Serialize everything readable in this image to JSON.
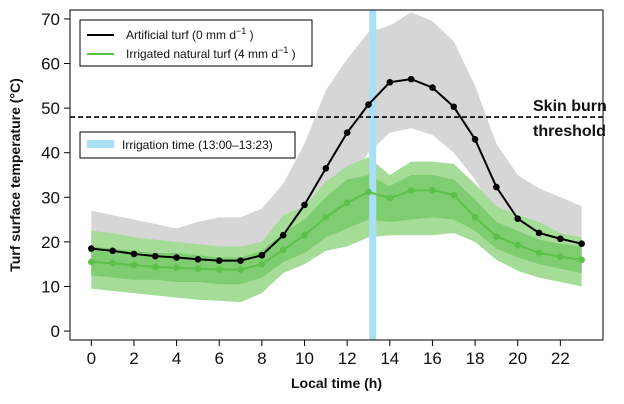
{
  "chart_data": {
    "type": "line",
    "xlabel": "Local time (h)",
    "ylabel": "Turf surface temperature (°C)",
    "xlim": [
      -1,
      24
    ],
    "ylim": [
      -2,
      72
    ],
    "xticks": [
      0,
      2,
      4,
      6,
      8,
      10,
      12,
      14,
      16,
      18,
      20,
      22
    ],
    "yticks": [
      0,
      10,
      20,
      30,
      40,
      50,
      60,
      70
    ],
    "grid": false,
    "legend": {
      "placement": "top-left"
    },
    "x": [
      0,
      1,
      2,
      3,
      4,
      5,
      6,
      7,
      8,
      9,
      10,
      11,
      12,
      13,
      14,
      15,
      16,
      17,
      18,
      19,
      20,
      21,
      22,
      23
    ],
    "series": [
      {
        "name": "Artificial turf (0 mm d",
        "name_sup": "−1",
        "name_suffix": " )",
        "color": "#000000",
        "band_color": "#d6d6d6",
        "values": [
          18.5,
          18.0,
          17.3,
          16.8,
          16.5,
          16.1,
          15.8,
          15.8,
          17.0,
          21.5,
          28.3,
          36.5,
          44.5,
          50.8,
          55.8,
          56.5,
          54.6,
          50.3,
          43.0,
          32.3,
          25.2,
          22.0,
          20.7,
          19.6
        ],
        "lower": [
          14.0,
          13.5,
          13.0,
          12.5,
          12.2,
          12.0,
          11.5,
          11.5,
          13.0,
          17.0,
          21.0,
          26.5,
          33.0,
          40.0,
          44.5,
          45.5,
          44.0,
          40.0,
          34.0,
          25.5,
          20.0,
          17.5,
          16.0,
          15.0
        ],
        "upper": [
          27.0,
          26.0,
          25.0,
          24.0,
          23.0,
          24.5,
          25.5,
          25.5,
          27.5,
          33.0,
          42.0,
          54.0,
          61.0,
          67.0,
          68.5,
          71.5,
          69.5,
          65.0,
          55.0,
          42.0,
          35.0,
          32.0,
          30.0,
          28.0
        ]
      },
      {
        "name": "Irrigated natural turf (4 mm d",
        "name_sup": "−1",
        "name_suffix": " )",
        "color": "#5cc04a",
        "band_color": "#a5dc98",
        "inner_band_color": "#7fcd71",
        "values": [
          15.5,
          15.2,
          14.8,
          14.4,
          14.2,
          14.0,
          13.8,
          13.8,
          15.0,
          18.2,
          21.5,
          25.5,
          28.8,
          31.2,
          29.8,
          31.5,
          31.6,
          30.5,
          25.5,
          21.2,
          19.3,
          17.5,
          16.7,
          16.0
        ],
        "lower": [
          9.5,
          9.0,
          8.5,
          8.0,
          7.5,
          7.0,
          6.8,
          6.5,
          8.5,
          13.0,
          15.0,
          18.0,
          19.0,
          21.0,
          21.5,
          21.5,
          21.5,
          22.0,
          20.0,
          16.0,
          13.5,
          12.0,
          11.0,
          10.0
        ],
        "upper": [
          22.5,
          22.0,
          21.0,
          20.5,
          20.0,
          19.5,
          19.0,
          19.0,
          20.0,
          26.0,
          28.0,
          33.5,
          37.0,
          39.0,
          35.0,
          38.0,
          38.0,
          37.5,
          33.0,
          28.0,
          26.0,
          24.5,
          22.0,
          21.0
        ],
        "inner_lower": [
          12.5,
          12.0,
          11.5,
          11.5,
          11.0,
          11.0,
          10.5,
          10.5,
          12.0,
          15.5,
          17.5,
          21.0,
          23.0,
          25.0,
          24.5,
          25.0,
          25.5,
          25.0,
          22.5,
          18.5,
          16.5,
          15.0,
          14.0,
          13.0
        ],
        "inner_upper": [
          19.0,
          18.5,
          18.0,
          17.5,
          17.5,
          17.0,
          16.5,
          16.5,
          18.0,
          22.0,
          25.0,
          30.0,
          34.0,
          35.0,
          32.5,
          35.0,
          35.0,
          34.0,
          29.5,
          24.5,
          22.5,
          20.5,
          19.5,
          19.0
        ]
      }
    ],
    "irrigation": {
      "label": "Irrigation time (13:00–13:23)",
      "x": 13.2,
      "color": "#aadff5"
    },
    "threshold": {
      "y": 48,
      "label_line1": "Skin burn",
      "label_line2": "threshold"
    }
  }
}
